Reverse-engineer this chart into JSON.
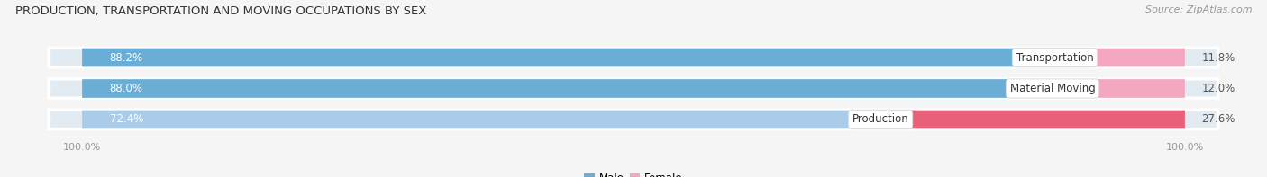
{
  "title": "PRODUCTION, TRANSPORTATION AND MOVING OCCUPATIONS BY SEX",
  "source": "Source: ZipAtlas.com",
  "categories": [
    "Transportation",
    "Material Moving",
    "Production"
  ],
  "male_values": [
    88.2,
    88.0,
    72.4
  ],
  "female_values": [
    11.8,
    12.0,
    27.6
  ],
  "male_colors": [
    "#6aaed6",
    "#6aaed6",
    "#aacce8"
  ],
  "female_colors": [
    "#f4a8c0",
    "#f4a8c0",
    "#e8607a"
  ],
  "bg_bar_color": "#e2eaf2",
  "bg_color": "#f5f5f5",
  "bar_edge_color": "#ffffff",
  "label_color_white": "#ffffff",
  "label_color_dark": "#555555",
  "center_label_color": "#333333",
  "title_color": "#333333",
  "source_color": "#999999",
  "tick_color": "#999999",
  "label_fontsize": 8.5,
  "title_fontsize": 9.5,
  "source_fontsize": 8,
  "axis_label_fontsize": 8,
  "bar_height": 0.62,
  "bar_gap": 0.18
}
